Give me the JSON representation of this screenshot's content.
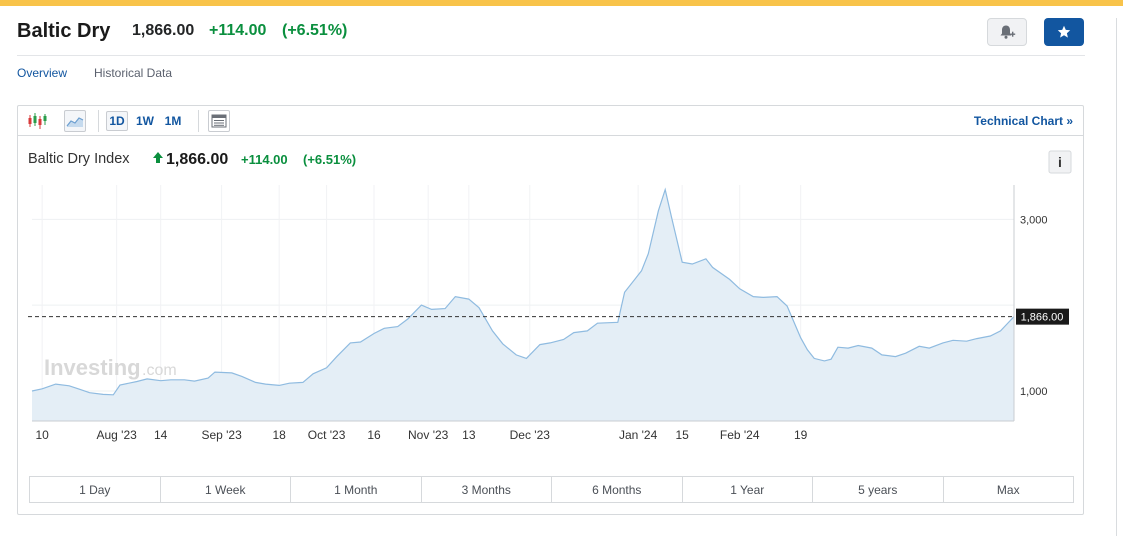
{
  "header": {
    "title": "Baltic Dry",
    "price": "1,866.00",
    "change": "+114.00",
    "change_pct": "(+6.51%)",
    "alert_icon": "bell-plus-icon",
    "star_icon": "star-icon"
  },
  "tabs": [
    {
      "label": "Overview",
      "active": true
    },
    {
      "label": "Historical Data",
      "active": false
    }
  ],
  "toolbar": {
    "chart_type_icons": [
      "candlestick-icon",
      "area-chart-icon"
    ],
    "intervals": [
      {
        "label": "1D",
        "active": true
      },
      {
        "label": "1W",
        "active": false
      },
      {
        "label": "1M",
        "active": false
      }
    ],
    "table_icon": "table-icon",
    "technical_chart": "Technical Chart »"
  },
  "legend": {
    "name": "Baltic Dry Index",
    "price": "1,866.00",
    "change": "+114.00",
    "change_pct": "(+6.51%)",
    "info": "i"
  },
  "watermark": {
    "brand": "Investing",
    "suffix": ".com"
  },
  "colors": {
    "accent": "#1256a0",
    "positive": "#0a8f3e",
    "area_fill": "#e3edf6",
    "line": "#8fbbe0",
    "top_bar": "#f8c34a"
  },
  "chart_data": {
    "type": "area",
    "title": "Baltic Dry Index",
    "ylim": [
      650,
      3400
    ],
    "yticks": [
      1000,
      2000,
      3000
    ],
    "ytick_labels": [
      "1,000",
      "",
      "3,000"
    ],
    "last_value": 1866,
    "last_value_label": "1,866.00",
    "grid": true,
    "xticks": [
      {
        "label": "10",
        "date": "2023-07-10"
      },
      {
        "label": "Aug '23",
        "date": "2023-08-01"
      },
      {
        "label": "14",
        "date": "2023-08-14"
      },
      {
        "label": "Sep '23",
        "date": "2023-09-01"
      },
      {
        "label": "18",
        "date": "2023-09-18"
      },
      {
        "label": "Oct '23",
        "date": "2023-10-02"
      },
      {
        "label": "16",
        "date": "2023-10-16"
      },
      {
        "label": "Nov '23",
        "date": "2023-11-01"
      },
      {
        "label": "13",
        "date": "2023-11-13"
      },
      {
        "label": "Dec '23",
        "date": "2023-12-01"
      },
      {
        "label": "Jan '24",
        "date": "2024-01-02"
      },
      {
        "label": "15",
        "date": "2024-01-15"
      },
      {
        "label": "Feb '24",
        "date": "2024-02-01"
      },
      {
        "label": "19",
        "date": "2024-02-19"
      }
    ],
    "series": [
      {
        "points": [
          [
            "2023-07-07",
            1000
          ],
          [
            "2023-07-10",
            1025
          ],
          [
            "2023-07-14",
            1080
          ],
          [
            "2023-07-18",
            1060
          ],
          [
            "2023-07-21",
            1020
          ],
          [
            "2023-07-24",
            980
          ],
          [
            "2023-07-28",
            960
          ],
          [
            "2023-07-31",
            955
          ],
          [
            "2023-08-02",
            1070
          ],
          [
            "2023-08-07",
            1110
          ],
          [
            "2023-08-10",
            1140
          ],
          [
            "2023-08-14",
            1120
          ],
          [
            "2023-08-17",
            1130
          ],
          [
            "2023-08-21",
            1130
          ],
          [
            "2023-08-24",
            1115
          ],
          [
            "2023-08-28",
            1150
          ],
          [
            "2023-08-30",
            1220
          ],
          [
            "2023-09-04",
            1210
          ],
          [
            "2023-09-07",
            1170
          ],
          [
            "2023-09-11",
            1100
          ],
          [
            "2023-09-14",
            1080
          ],
          [
            "2023-09-18",
            1065
          ],
          [
            "2023-09-21",
            1090
          ],
          [
            "2023-09-25",
            1100
          ],
          [
            "2023-09-28",
            1200
          ],
          [
            "2023-10-02",
            1270
          ],
          [
            "2023-10-05",
            1400
          ],
          [
            "2023-10-09",
            1560
          ],
          [
            "2023-10-12",
            1570
          ],
          [
            "2023-10-16",
            1670
          ],
          [
            "2023-10-19",
            1730
          ],
          [
            "2023-10-23",
            1750
          ],
          [
            "2023-10-26",
            1840
          ],
          [
            "2023-10-30",
            2000
          ],
          [
            "2023-11-02",
            1950
          ],
          [
            "2023-11-06",
            1960
          ],
          [
            "2023-11-09",
            2100
          ],
          [
            "2023-11-13",
            2070
          ],
          [
            "2023-11-16",
            1970
          ],
          [
            "2023-11-20",
            1700
          ],
          [
            "2023-11-23",
            1550
          ],
          [
            "2023-11-27",
            1420
          ],
          [
            "2023-11-30",
            1380
          ],
          [
            "2023-12-04",
            1540
          ],
          [
            "2023-12-07",
            1560
          ],
          [
            "2023-12-11",
            1600
          ],
          [
            "2023-12-14",
            1680
          ],
          [
            "2023-12-18",
            1700
          ],
          [
            "2023-12-21",
            1790
          ],
          [
            "2023-12-27",
            1800
          ],
          [
            "2023-12-29",
            2150
          ],
          [
            "2024-01-03",
            2400
          ],
          [
            "2024-01-05",
            2600
          ],
          [
            "2024-01-08",
            3100
          ],
          [
            "2024-01-10",
            3346
          ],
          [
            "2024-01-12",
            3000
          ],
          [
            "2024-01-15",
            2500
          ],
          [
            "2024-01-18",
            2480
          ],
          [
            "2024-01-22",
            2540
          ],
          [
            "2024-01-24",
            2440
          ],
          [
            "2024-01-29",
            2300
          ],
          [
            "2024-02-01",
            2190
          ],
          [
            "2024-02-05",
            2100
          ],
          [
            "2024-02-08",
            2090
          ],
          [
            "2024-02-12",
            2100
          ],
          [
            "2024-02-15",
            1990
          ],
          [
            "2024-02-19",
            1620
          ],
          [
            "2024-02-21",
            1480
          ],
          [
            "2024-02-23",
            1380
          ],
          [
            "2024-02-26",
            1350
          ],
          [
            "2024-02-28",
            1370
          ],
          [
            "2024-03-01",
            1510
          ],
          [
            "2024-03-04",
            1500
          ],
          [
            "2024-03-07",
            1530
          ],
          [
            "2024-03-11",
            1500
          ],
          [
            "2024-03-14",
            1420
          ],
          [
            "2024-03-18",
            1400
          ],
          [
            "2024-03-21",
            1440
          ],
          [
            "2024-03-25",
            1520
          ],
          [
            "2024-03-28",
            1500
          ],
          [
            "2024-04-01",
            1560
          ],
          [
            "2024-04-04",
            1590
          ],
          [
            "2024-04-08",
            1580
          ],
          [
            "2024-04-11",
            1610
          ],
          [
            "2024-04-15",
            1640
          ],
          [
            "2024-04-18",
            1700
          ],
          [
            "2024-04-22",
            1866
          ]
        ]
      }
    ]
  },
  "ranges": [
    "1 Day",
    "1 Week",
    "1 Month",
    "3 Months",
    "6 Months",
    "1 Year",
    "5 years",
    "Max"
  ]
}
